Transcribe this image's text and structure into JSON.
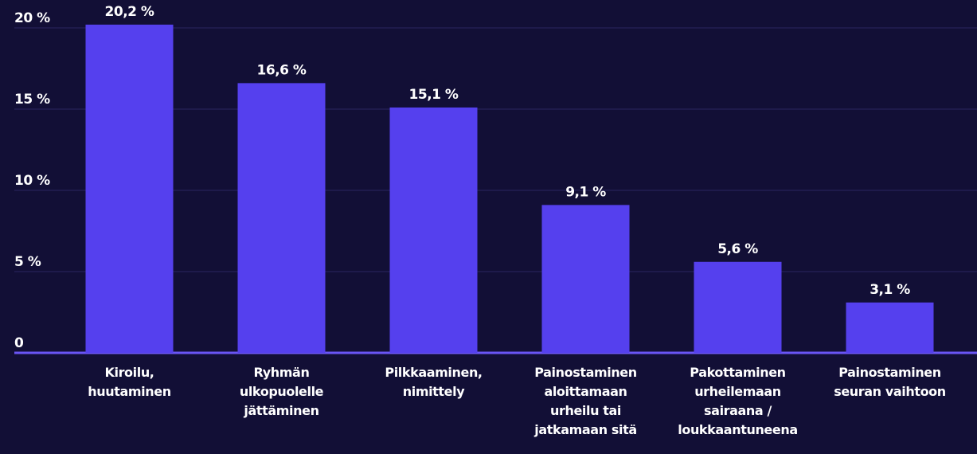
{
  "chart_data": {
    "type": "bar",
    "categories": [
      "Kiroilu,\nhuutaminen",
      "Ryhmän\nulkopuolelle\njättäminen",
      "Pilkkaaminen,\nnimittely",
      "Painostaminen\naloittamaan\nurheilu tai\njatkamaan sitä",
      "Pakottaminen\nurheilemaan\nsairaana /\nloukkaantuneena",
      "Painostaminen\nseuran vaihtoon"
    ],
    "values": [
      20.2,
      16.6,
      15.1,
      9.1,
      5.6,
      3.1
    ],
    "value_labels": [
      "20,2 %",
      "16,6 %",
      "15,1 %",
      "9,1 %",
      "5,6 %",
      "3,1 %"
    ],
    "color": "#5540ee",
    "ylim": [
      0,
      20
    ],
    "yticks": [
      0,
      {
        "value": 5,
        "label": "5 %"
      },
      {
        "value": 10,
        "label": "10 %"
      },
      {
        "value": 15,
        "label": "15 %"
      },
      {
        "value": 20,
        "label": "20 %"
      }
    ],
    "grid": true
  }
}
